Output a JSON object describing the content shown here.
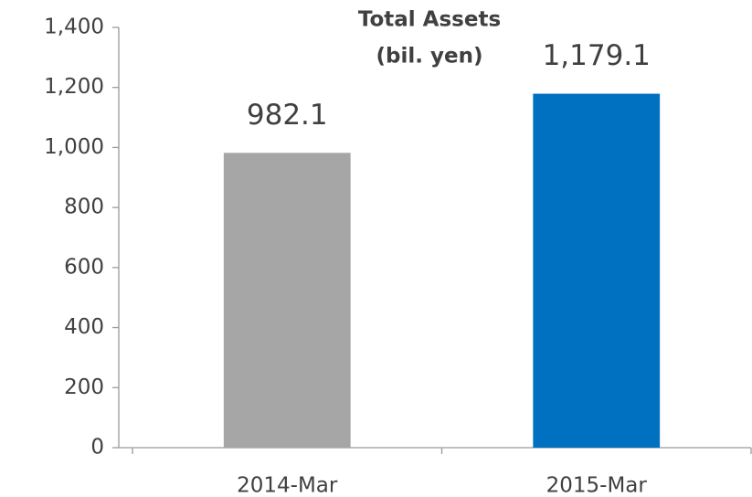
{
  "chart_data": {
    "type": "bar",
    "title": "Total Assets",
    "subtitle": "(bil. yen)",
    "categories": [
      "2014-Mar",
      "2015-Mar"
    ],
    "values": [
      982.1,
      1179.1
    ],
    "value_labels": [
      "982.1",
      "1,179.1"
    ],
    "colors": [
      "#a6a6a6",
      "#0070c0"
    ],
    "ylim": [
      0,
      1400
    ],
    "yticks": [
      0,
      200,
      400,
      600,
      800,
      {
        "value": 1000,
        "label": "1,000"
      },
      {
        "value": 1200,
        "label": "1,200"
      },
      {
        "value": 1400,
        "label": "1,400"
      }
    ],
    "grid": false
  }
}
